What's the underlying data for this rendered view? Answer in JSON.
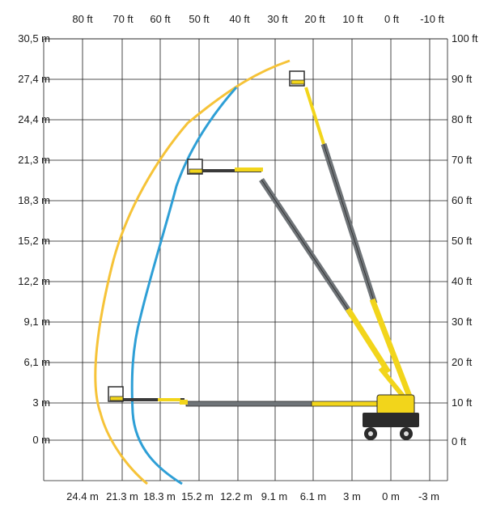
{
  "diagram": {
    "top_ticks": [
      "80 ft",
      "70 ft",
      "60 ft",
      "50 ft",
      "40 ft",
      "30 ft",
      "20 ft",
      "10 ft",
      "0 ft",
      "-10 ft"
    ],
    "bottom_ticks": [
      "24.4 m",
      "21.3 m",
      "18.3 m",
      "15.2 m",
      "12.2 m",
      "9.1 m",
      "6.1 m",
      "3 m",
      "0 m",
      "-3 m"
    ],
    "left_ticks": [
      "30,5 m",
      "27,4 m",
      "24,4 m",
      "21,3 m",
      "18,3 m",
      "15,2 m",
      "12,2 m",
      "9,1 m",
      "6,1 m",
      "3 m",
      "0 m"
    ],
    "right_ticks": [
      "100 ft",
      "90 ft",
      "80 ft",
      "70 ft",
      "60 ft",
      "50 ft",
      "40 ft",
      "30 ft",
      "20 ft",
      "10 ft",
      "0 ft"
    ],
    "colors": {
      "grid": "#1a1a1a",
      "envelope_outer": "#f6c338",
      "envelope_inner": "#2e9fd6",
      "boom_grey": "#6f7478",
      "boom_yellow": "#f2d51b",
      "machine_dark": "#2b2b2b"
    }
  }
}
